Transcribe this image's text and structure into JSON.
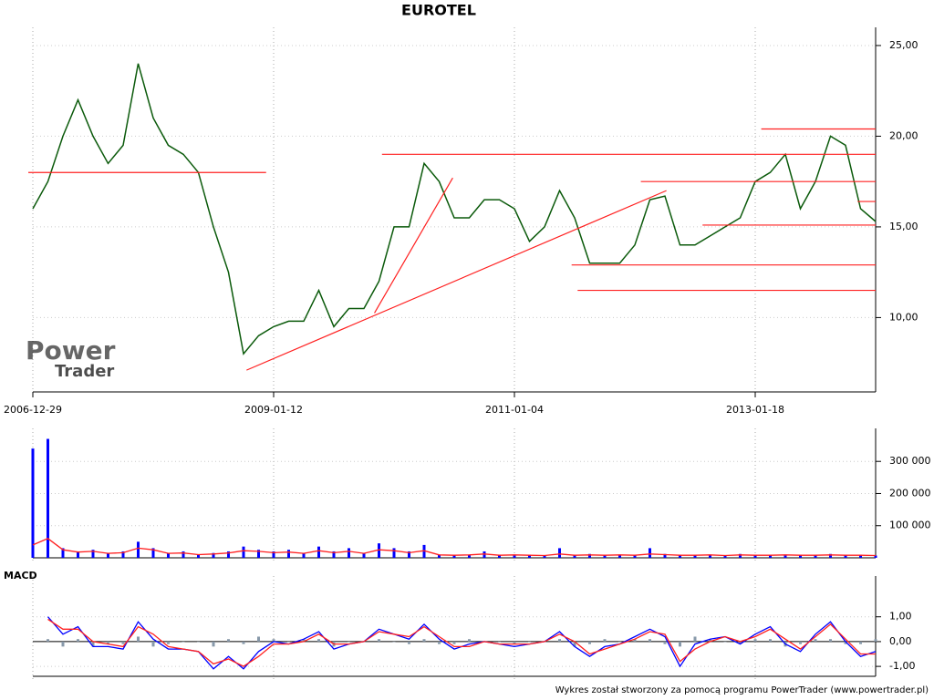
{
  "chart_data": [
    {
      "type": "line",
      "title": "EUROTEL",
      "categories": [
        "2006-12-29",
        null,
        null,
        null,
        null,
        null,
        null,
        null,
        null,
        null,
        null,
        null,
        null,
        null,
        null,
        null,
        "2009-01-12",
        null,
        null,
        null,
        null,
        null,
        null,
        null,
        null,
        null,
        null,
        null,
        null,
        null,
        null,
        null,
        "2011-01-04",
        null,
        null,
        null,
        null,
        null,
        null,
        null,
        null,
        null,
        null,
        null,
        null,
        null,
        null,
        null,
        "2013-01-18",
        null,
        null,
        null,
        null,
        null,
        null,
        null,
        null
      ],
      "series": [
        {
          "color": "#0b5a0b",
          "values": [
            16,
            17.5,
            20,
            22,
            20,
            18.5,
            19.5,
            24,
            21,
            19.5,
            19,
            18,
            15,
            12.5,
            8,
            9,
            9.5,
            9.8,
            9.8,
            11.5,
            9.5,
            10.5,
            10.5,
            12,
            15,
            15,
            18.5,
            17.5,
            15.5,
            15.5,
            16.5,
            16.5,
            16,
            14.2,
            15,
            17,
            15.5,
            13,
            13,
            13,
            14,
            16.5,
            16.7,
            14,
            14,
            14.5,
            15,
            15.5,
            17.5,
            18,
            19,
            16,
            17.5,
            20,
            19.5,
            16,
            15.3
          ]
        }
      ],
      "ylim": [
        5.9,
        25.6
      ],
      "yticks": [
        {
          "value": 10,
          "label": "10,00"
        },
        {
          "value": 15,
          "label": "15,00"
        },
        {
          "value": 20,
          "label": "20,00"
        },
        {
          "value": 25,
          "label": "25,00"
        }
      ],
      "grid": true,
      "hlines": [
        {
          "value": 18,
          "x": [
            -0.3,
            15.5
          ]
        },
        {
          "value": 19,
          "x": [
            23.2,
            56
          ]
        },
        {
          "value": 17.5,
          "x": [
            40.4,
            56
          ]
        },
        {
          "value": 20.4,
          "x": [
            48.4,
            56
          ]
        },
        {
          "value": 15.1,
          "x": [
            44.5,
            56
          ]
        },
        {
          "value": 12.9,
          "x": [
            35.8,
            56
          ]
        },
        {
          "value": 11.5,
          "x": [
            36.2,
            56
          ]
        },
        {
          "value": 16.4,
          "x": [
            54.8,
            56
          ]
        }
      ],
      "trendlines": [
        {
          "x": [
            14.2,
            42.1
          ],
          "y": [
            7.1,
            17
          ]
        },
        {
          "x": [
            22.7,
            27.9
          ],
          "y": [
            10.25,
            17.7
          ]
        }
      ],
      "line_color": "#ff2020",
      "watermark": [
        "Power",
        "Trader"
      ]
    },
    {
      "type": "bar",
      "series": [
        {
          "color": "#0000ff",
          "values": [
            340000,
            370000,
            30000,
            20000,
            25000,
            15000,
            20000,
            50000,
            30000,
            15000,
            20000,
            10000,
            15000,
            20000,
            35000,
            25000,
            20000,
            25000,
            15000,
            35000,
            20000,
            30000,
            15000,
            45000,
            30000,
            20000,
            40000,
            10000,
            8000,
            10000,
            20000,
            8000,
            10000,
            9000,
            7000,
            30000,
            8000,
            12000,
            9000,
            10000,
            8000,
            30000,
            12000,
            9000,
            8000,
            10000,
            7000,
            12000,
            8000,
            9000,
            10000,
            8000,
            9000,
            12000,
            8000,
            9000,
            7000
          ]
        },
        {
          "type": "line",
          "color": "#ff2020",
          "values": [
            40000,
            60000,
            25000,
            18000,
            20000,
            14000,
            16000,
            30000,
            25000,
            14000,
            15000,
            10000,
            12000,
            15000,
            22000,
            20000,
            16000,
            18000,
            14000,
            22000,
            16000,
            20000,
            14000,
            25000,
            22000,
            16000,
            22000,
            9000,
            8000,
            9000,
            12000,
            8000,
            9000,
            8000,
            7000,
            12000,
            8000,
            9000,
            8000,
            9000,
            8000,
            12000,
            10000,
            8000,
            8000,
            9000,
            7000,
            9000,
            8000,
            8000,
            9000,
            8000,
            8000,
            9000,
            8000,
            8000,
            7000
          ]
        }
      ],
      "ylim": [
        0,
        380000
      ],
      "yticks": [
        {
          "value": 100000,
          "label": "100 000"
        },
        {
          "value": 200000,
          "label": "200 000"
        },
        {
          "value": 300000,
          "label": "300 000"
        }
      ],
      "grid": true
    },
    {
      "type": "line",
      "title": "MACD",
      "series": [
        {
          "color": "#0000ff",
          "values": [
            null,
            1.0,
            0.3,
            0.6,
            -0.2,
            -0.2,
            -0.3,
            0.8,
            0.1,
            -0.3,
            -0.3,
            -0.4,
            -1.1,
            -0.6,
            -1.1,
            -0.4,
            0.0,
            -0.1,
            0.1,
            0.4,
            -0.3,
            -0.1,
            0.0,
            0.5,
            0.3,
            0.1,
            0.7,
            0.1,
            -0.3,
            -0.1,
            0.0,
            -0.1,
            -0.2,
            -0.1,
            0.0,
            0.4,
            -0.2,
            -0.6,
            -0.2,
            -0.1,
            0.2,
            0.5,
            0.2,
            -1.0,
            -0.1,
            0.1,
            0.2,
            -0.1,
            0.3,
            0.6,
            -0.1,
            -0.4,
            0.3,
            0.8,
            0.0,
            -0.6,
            -0.4
          ]
        },
        {
          "color": "#ff2020",
          "values": [
            null,
            0.9,
            0.5,
            0.5,
            0.0,
            -0.1,
            -0.2,
            0.6,
            0.3,
            -0.2,
            -0.3,
            -0.4,
            -0.9,
            -0.7,
            -1.0,
            -0.6,
            -0.1,
            -0.1,
            0.0,
            0.3,
            -0.1,
            -0.1,
            0.0,
            0.4,
            0.3,
            0.2,
            0.6,
            0.2,
            -0.2,
            -0.2,
            0.0,
            -0.1,
            -0.1,
            -0.1,
            0.0,
            0.3,
            0.0,
            -0.5,
            -0.3,
            -0.1,
            0.1,
            0.4,
            0.3,
            -0.8,
            -0.3,
            0.0,
            0.2,
            0.0,
            0.2,
            0.5,
            0.1,
            -0.3,
            0.2,
            0.7,
            0.1,
            -0.5,
            -0.5
          ]
        },
        {
          "type": "bar",
          "color": "#8899aa",
          "values": [
            null,
            0.1,
            -0.2,
            0.1,
            -0.2,
            -0.1,
            -0.1,
            0.2,
            -0.2,
            -0.1,
            0.0,
            0.0,
            -0.2,
            0.1,
            -0.1,
            0.2,
            0.1,
            0.0,
            0.1,
            0.1,
            -0.2,
            0.0,
            0.0,
            0.1,
            0.0,
            -0.1,
            0.1,
            -0.1,
            -0.1,
            0.1,
            0.0,
            0.0,
            -0.1,
            0.0,
            0.0,
            0.1,
            -0.2,
            -0.1,
            0.1,
            0.0,
            0.1,
            0.1,
            -0.1,
            -0.2,
            0.2,
            0.1,
            0.0,
            -0.1,
            0.1,
            0.1,
            -0.2,
            -0.1,
            0.1,
            0.1,
            -0.1,
            -0.1,
            0.1
          ]
        }
      ],
      "ylim": [
        -1.4,
        2.35
      ],
      "yticks": [
        {
          "value": -1,
          "label": "-1,00"
        },
        {
          "value": 0,
          "label": "0,00"
        },
        {
          "value": 1,
          "label": "1,00"
        }
      ],
      "grid": true
    }
  ],
  "footer": "Wykres został stworzony za pomocą programu PowerTrader (www.powertrader.pl)"
}
